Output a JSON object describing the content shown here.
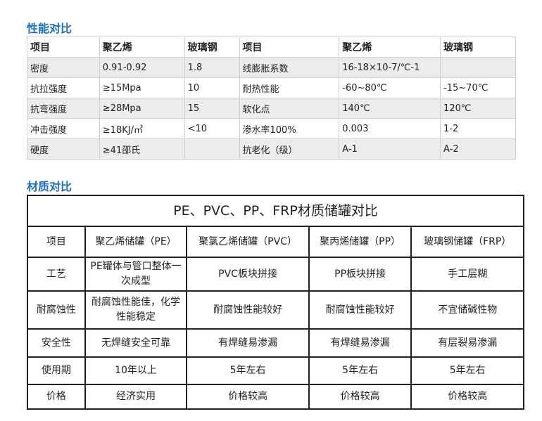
{
  "perf": {
    "title": "性能对比",
    "header": [
      "项目",
      "聚乙烯",
      "玻璃钢",
      "项目",
      "聚乙烯",
      "玻璃钢"
    ],
    "rows": [
      [
        "密度",
        "0.91-0.92",
        "1.8",
        "线膨胀系数",
        "16-18×10-7/℃-1",
        ""
      ],
      [
        "抗拉强度",
        "≥15Mpa",
        "10",
        "耐热性能",
        "-60~80℃",
        "-15~70℃"
      ],
      [
        "抗弯强度",
        "≥28Mpa",
        "15",
        "软化点",
        "140℃",
        "120℃"
      ],
      [
        "冲击强度",
        "≥18KJ/㎡",
        "<10",
        "渗水率100%",
        "0.003",
        "1-2"
      ],
      [
        "硬度",
        "≥41邵氏",
        "",
        "抗老化（级）",
        "A-1",
        "A-2"
      ]
    ]
  },
  "material": {
    "title": "材质对比",
    "caption": "PE、PVC、PP、FRP材质储罐对比",
    "header": [
      "项目",
      "聚乙烯储罐（PE）",
      "聚氯乙烯储罐（PVC）",
      "聚丙烯储罐（PP）",
      "玻璃钢储罐（FRP）"
    ],
    "rows": [
      [
        "工艺",
        "PE罐体与管口整体一次成型",
        "PVC板块拼接",
        "PP板块拼接",
        "手工层糊"
      ],
      [
        "耐腐蚀性",
        "耐腐蚀性能佳，化学性能稳定",
        "耐腐蚀性能较好",
        "耐腐蚀性能较好",
        "不宜储碱性物"
      ],
      [
        "安全性",
        "无焊缝安全可靠",
        "有焊缝易渗漏",
        "有焊缝易渗漏",
        "有层裂易渗漏"
      ],
      [
        "使用期",
        "10年以上",
        "5年左右",
        "5年左右",
        "5年左右"
      ],
      [
        "价格",
        "经济实用",
        "价格较高",
        "价格较高",
        "价格较高"
      ]
    ]
  },
  "colors": {
    "heading": "#1a6fc4",
    "row_alt": "#ececec"
  }
}
